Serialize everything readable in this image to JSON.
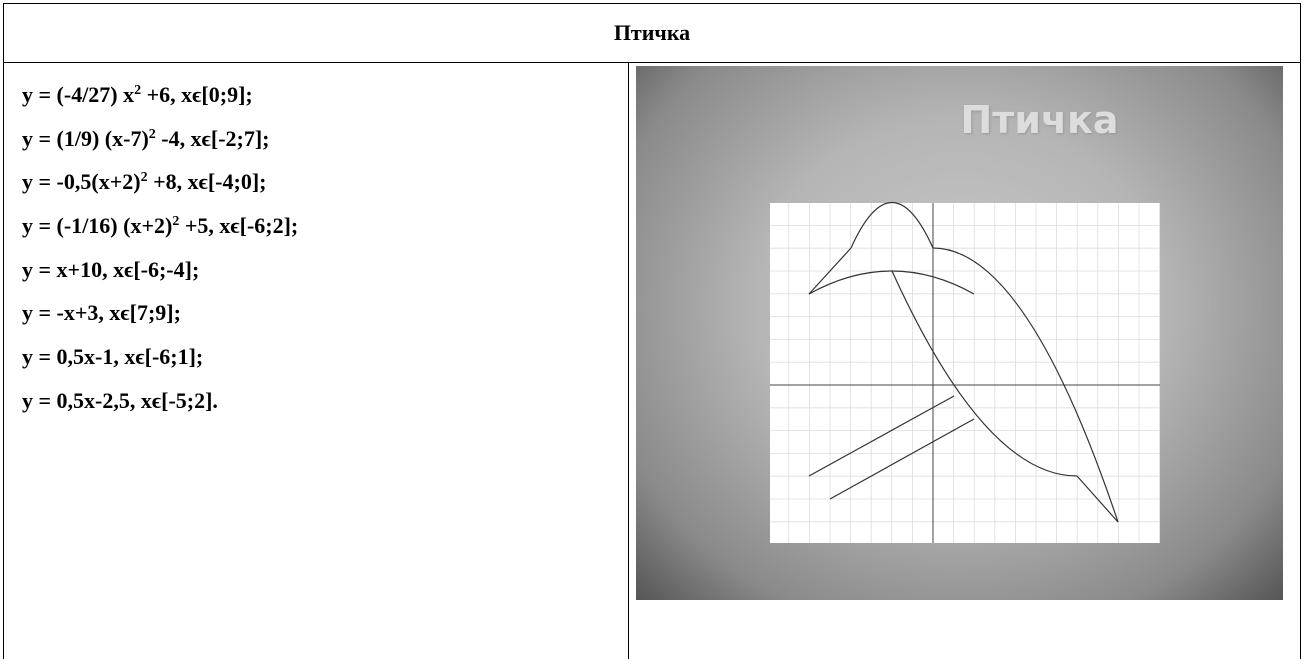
{
  "table": {
    "header": "Птичка",
    "equations": [
      [
        "y = (-4/27) x",
        "2",
        " +6, xϵ[0;9];"
      ],
      [
        "y = (1/9) (x-7)",
        "2",
        " -4, xϵ[-2;7];"
      ],
      [
        "y = -0,5(x+2)",
        "2",
        " +8, xϵ[-4;0];"
      ],
      [
        "y = (-1/16) (x+2)",
        "2",
        " +5, xϵ[-6;2];"
      ],
      [
        "y = x+10, xϵ[-6;-4];"
      ],
      [
        "y = -x+3, xϵ[7;9];"
      ],
      [
        "y = 0,5x-1, xϵ[-6;1];"
      ],
      [
        "y = 0,5x-2,5, xϵ[-5;2]."
      ]
    ]
  },
  "image": {
    "title": "Птичка"
  }
}
